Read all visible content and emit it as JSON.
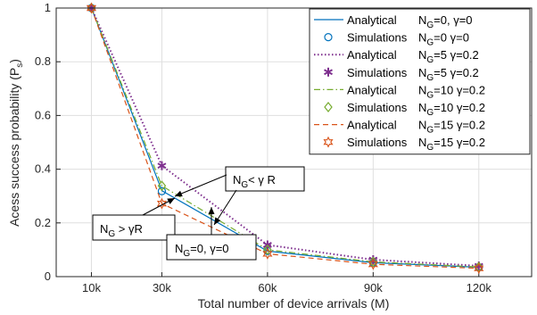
{
  "chart_data": {
    "type": "line",
    "xlabel": "Total number of device arrivals (M)",
    "ylabel": "Acess success probability (P_s)",
    "xlim": [
      0,
      135000
    ],
    "ylim": [
      0,
      1
    ],
    "x_ticks": [
      {
        "value": 10000,
        "label": "10k"
      },
      {
        "value": 30000,
        "label": "30k"
      },
      {
        "value": 60000,
        "label": "60k"
      },
      {
        "value": 90000,
        "label": "90k"
      },
      {
        "value": 120000,
        "label": "120k"
      }
    ],
    "y_ticks": [
      {
        "value": 0,
        "label": "0"
      },
      {
        "value": 0.2,
        "label": "0.2"
      },
      {
        "value": 0.4,
        "label": "0.4"
      },
      {
        "value": 0.6,
        "label": "0.6"
      },
      {
        "value": 0.8,
        "label": "0.8"
      },
      {
        "value": 1,
        "label": "1"
      }
    ],
    "grid": true,
    "legend_position": "top-right",
    "x": [
      10000,
      30000,
      60000,
      90000,
      120000
    ],
    "series": [
      {
        "name": "Analytical N_G=0, γ=0",
        "kind": "line",
        "color": "#0072BD",
        "dash": "solid",
        "values": [
          1.0,
          0.32,
          0.095,
          0.052,
          0.035
        ]
      },
      {
        "name": "Simulations N_G=0 γ=0",
        "kind": "marker",
        "marker": "circle",
        "color": "#0072BD",
        "values": [
          1.0,
          0.318,
          0.095,
          0.052,
          0.035
        ]
      },
      {
        "name": "Analytical N_G=5 γ=0.2",
        "kind": "line",
        "color": "#7E2F8E",
        "dash": "dotted",
        "values": [
          1.0,
          0.413,
          0.118,
          0.063,
          0.04
        ]
      },
      {
        "name": "Simulations N_G=5 γ=0.2",
        "kind": "marker",
        "marker": "asterisk",
        "color": "#7E2F8E",
        "values": [
          1.0,
          0.413,
          0.118,
          0.063,
          0.04
        ]
      },
      {
        "name": "Analytical N_G=10 γ=0.2",
        "kind": "line",
        "color": "#77AC30",
        "dash": "dashdot",
        "values": [
          1.0,
          0.338,
          0.1,
          0.055,
          0.036
        ]
      },
      {
        "name": "Simulations N_G=10 γ=0.2",
        "kind": "marker",
        "marker": "diamond",
        "color": "#77AC30",
        "values": [
          1.0,
          0.338,
          0.1,
          0.055,
          0.036
        ]
      },
      {
        "name": "Analytical N_G=15 γ=0.2",
        "kind": "line",
        "color": "#D95319",
        "dash": "dashed",
        "values": [
          1.0,
          0.272,
          0.085,
          0.046,
          0.031
        ]
      },
      {
        "name": "Simulations N_G=15 γ=0.2",
        "kind": "marker",
        "marker": "hexagram",
        "color": "#D95319",
        "values": [
          1.0,
          0.272,
          0.085,
          0.046,
          0.031
        ]
      }
    ],
    "legend": [
      {
        "type": "Analytical",
        "ng": "0,",
        "gamma": "=0"
      },
      {
        "type": "Simulations",
        "ng": "0",
        "gamma": "=0"
      },
      {
        "type": "Analytical",
        "ng": "5",
        "gamma": "=0.2"
      },
      {
        "type": "Simulations",
        "ng": "5",
        "gamma": "=0.2"
      },
      {
        "type": "Analytical",
        "ng": "10",
        "gamma": "=0.2"
      },
      {
        "type": "Simulations",
        "ng": "10",
        "gamma": "=0.2"
      },
      {
        "type": "Analytical",
        "ng": "15",
        "gamma": "=0.2"
      },
      {
        "type": "Simulations",
        "ng": "15",
        "gamma": "=0.2"
      }
    ],
    "annotations": [
      {
        "id": "ng-less",
        "text": "N_G< γ R"
      },
      {
        "id": "ng-greater",
        "text": "N_G > γR"
      },
      {
        "id": "ng-zero",
        "text": "N_G=0, γ=0"
      }
    ]
  }
}
